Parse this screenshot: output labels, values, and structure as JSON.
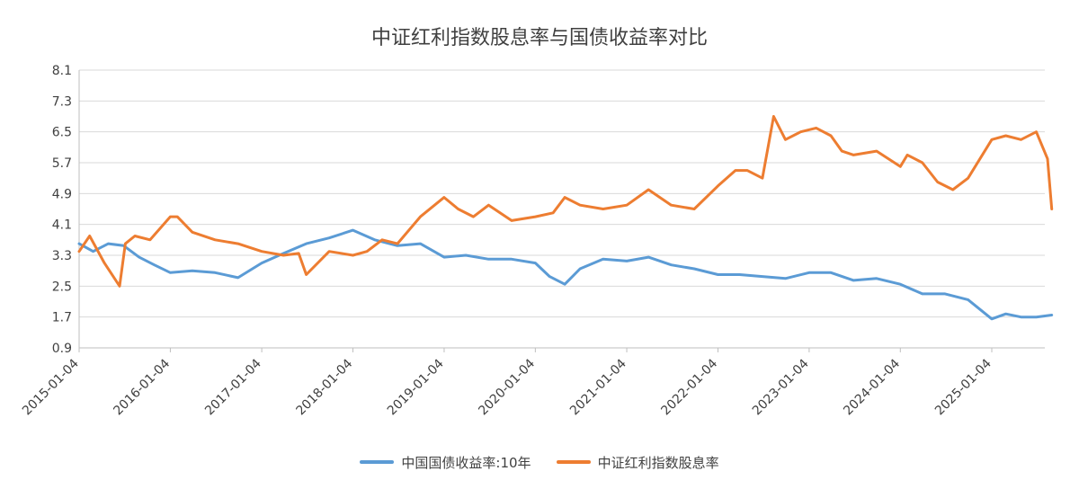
{
  "chart_data": {
    "type": "line",
    "title": "中证红利指数股息率与国债收益率对比",
    "xlabel": "",
    "ylabel": "",
    "ylim": [
      0.9,
      8.1
    ],
    "yticks": [
      "0.9",
      "1.7",
      "2.5",
      "3.3",
      "4.1",
      "4.9",
      "5.7",
      "6.5",
      "7.3",
      "8.1"
    ],
    "xticks": [
      "2015-01-04",
      "2016-01-04",
      "2017-01-04",
      "2018-01-04",
      "2019-01-04",
      "2020-01-04",
      "2021-01-04",
      "2022-01-04",
      "2023-01-04",
      "2024-01-04",
      "2025-01-04"
    ],
    "grid": true,
    "legend_position": "bottom",
    "series": [
      {
        "name": "中国国债收益率:10年",
        "color": "#5B9BD5",
        "x": [
          "2015-01-04",
          "2015-03-01",
          "2015-05-01",
          "2015-07-01",
          "2015-09-01",
          "2015-11-01",
          "2016-01-04",
          "2016-04-01",
          "2016-07-01",
          "2016-10-01",
          "2017-01-04",
          "2017-04-01",
          "2017-07-01",
          "2017-10-01",
          "2018-01-04",
          "2018-04-01",
          "2018-07-01",
          "2018-10-01",
          "2019-01-04",
          "2019-04-01",
          "2019-07-01",
          "2019-10-01",
          "2020-01-04",
          "2020-03-01",
          "2020-05-01",
          "2020-07-01",
          "2020-10-01",
          "2021-01-04",
          "2021-04-01",
          "2021-07-01",
          "2021-10-01",
          "2022-01-04",
          "2022-04-01",
          "2022-07-01",
          "2022-10-01",
          "2023-01-04",
          "2023-04-01",
          "2023-07-01",
          "2023-10-01",
          "2024-01-04",
          "2024-04-01",
          "2024-07-01",
          "2024-10-01",
          "2025-01-04",
          "2025-03-01",
          "2025-05-01",
          "2025-07-01",
          "2025-09-01"
        ],
        "values": [
          3.6,
          3.4,
          3.6,
          3.55,
          3.25,
          3.05,
          2.85,
          2.9,
          2.85,
          2.72,
          3.1,
          3.35,
          3.6,
          3.75,
          3.95,
          3.7,
          3.55,
          3.6,
          3.25,
          3.3,
          3.2,
          3.2,
          3.1,
          2.75,
          2.55,
          2.95,
          3.2,
          3.15,
          3.25,
          3.05,
          2.95,
          2.8,
          2.8,
          2.75,
          2.7,
          2.85,
          2.85,
          2.65,
          2.7,
          2.55,
          2.3,
          2.3,
          2.15,
          1.65,
          1.78,
          1.7,
          1.7,
          1.75
        ]
      },
      {
        "name": "中证红利指数股息率",
        "color": "#ED7D31",
        "x": [
          "2015-01-04",
          "2015-02-15",
          "2015-04-15",
          "2015-06-15",
          "2015-07-08",
          "2015-08-15",
          "2015-10-15",
          "2016-01-04",
          "2016-02-01",
          "2016-04-01",
          "2016-07-01",
          "2016-10-01",
          "2017-01-04",
          "2017-04-01",
          "2017-06-01",
          "2017-07-01",
          "2017-10-01",
          "2018-01-04",
          "2018-03-01",
          "2018-05-01",
          "2018-07-01",
          "2018-10-01",
          "2019-01-04",
          "2019-03-01",
          "2019-05-01",
          "2019-07-01",
          "2019-10-01",
          "2020-01-04",
          "2020-03-15",
          "2020-05-01",
          "2020-07-01",
          "2020-10-01",
          "2021-01-04",
          "2021-04-01",
          "2021-07-01",
          "2021-10-01",
          "2022-01-04",
          "2022-03-15",
          "2022-05-01",
          "2022-07-01",
          "2022-08-15",
          "2022-10-01",
          "2022-12-01",
          "2023-02-01",
          "2023-04-01",
          "2023-05-15",
          "2023-07-01",
          "2023-10-01",
          "2024-01-04",
          "2024-02-01",
          "2024-04-01",
          "2024-06-01",
          "2024-08-01",
          "2024-10-01",
          "2025-01-04",
          "2025-03-01",
          "2025-05-01",
          "2025-07-01",
          "2025-08-15",
          "2025-09-01"
        ],
        "values": [
          3.4,
          3.8,
          3.1,
          2.5,
          3.6,
          3.8,
          3.7,
          4.3,
          4.3,
          3.9,
          3.7,
          3.6,
          3.4,
          3.3,
          3.35,
          2.8,
          3.4,
          3.3,
          3.4,
          3.7,
          3.6,
          4.3,
          4.8,
          4.5,
          4.3,
          4.6,
          4.2,
          4.3,
          4.4,
          4.8,
          4.6,
          4.5,
          4.6,
          5.0,
          4.6,
          4.5,
          5.1,
          5.5,
          5.5,
          5.3,
          6.9,
          6.3,
          6.5,
          6.6,
          6.4,
          6.0,
          5.9,
          6.0,
          5.6,
          5.9,
          5.7,
          5.2,
          5.0,
          5.3,
          6.3,
          6.4,
          6.3,
          6.5,
          5.8,
          4.5
        ]
      }
    ]
  }
}
